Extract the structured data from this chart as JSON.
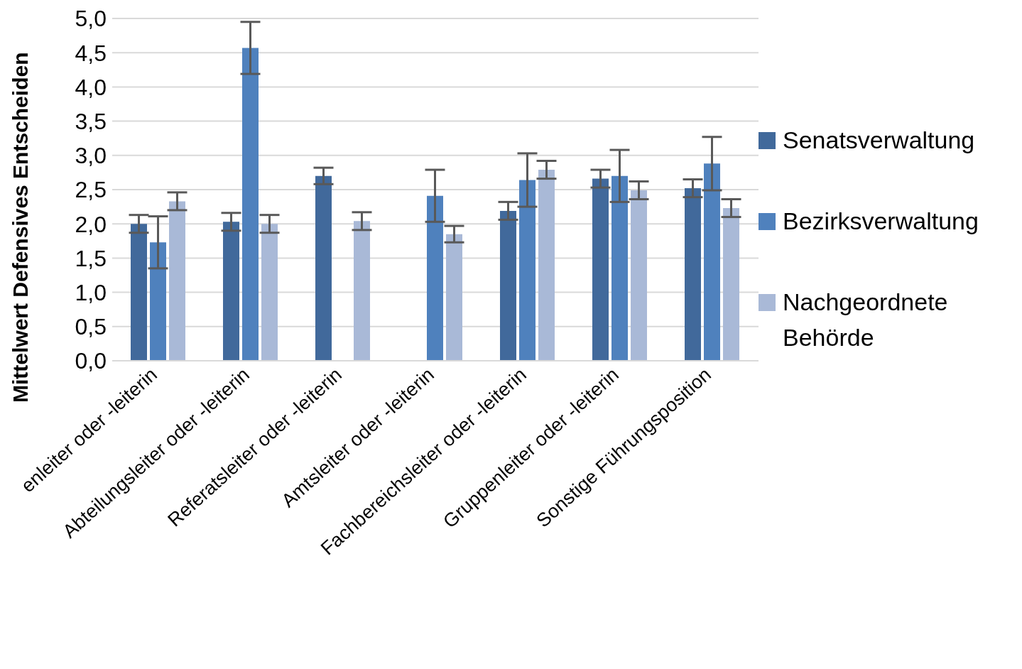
{
  "chart_data": {
    "type": "bar",
    "ylabel": "Mittelwert Defensives Entscheiden",
    "categories": [
      "enleiter oder -leiterin",
      "Abteilungsleiter oder -leiterin",
      "Referatsleiter oder -leiterin",
      "Amtsleiter oder -leiterin",
      "Fachbereichsleiter oder -leiterin",
      "Gruppenleiter oder -leiterin",
      "Sonstige Führungsposition"
    ],
    "series": [
      {
        "name": "Senatsverwaltung",
        "color": "#41699b",
        "values": [
          2.0,
          2.03,
          2.7,
          null,
          2.19,
          2.66,
          2.52
        ],
        "errors": [
          0.13,
          0.13,
          0.12,
          null,
          0.13,
          0.13,
          0.13
        ]
      },
      {
        "name": "Bezirksverwaltung",
        "color": "#4f81bd",
        "values": [
          1.73,
          4.57,
          null,
          2.41,
          2.64,
          2.7,
          2.88
        ],
        "errors": [
          0.38,
          0.38,
          null,
          0.38,
          0.39,
          0.38,
          0.39
        ]
      },
      {
        "name": "Nachgeordnete Behörde",
        "color": "#a9b9d7",
        "values": [
          2.33,
          2.0,
          2.04,
          1.85,
          2.79,
          2.49,
          2.23
        ],
        "errors": [
          0.13,
          0.13,
          0.13,
          0.12,
          0.13,
          0.13,
          0.13
        ]
      }
    ],
    "ylim": [
      0,
      5
    ],
    "yticks": [
      {
        "value": 0,
        "label": "0,0"
      },
      {
        "value": 0.5,
        "label": "0,5"
      },
      {
        "value": 1,
        "label": "1,0"
      },
      {
        "value": 1.5,
        "label": "1,5"
      },
      {
        "value": 2,
        "label": "2,0"
      },
      {
        "value": 2.5,
        "label": "2,5"
      },
      {
        "value": 3,
        "label": "3,0"
      },
      {
        "value": 3.5,
        "label": "3,5"
      },
      {
        "value": 4,
        "label": "4,0"
      },
      {
        "value": 4.5,
        "label": "4,5"
      },
      {
        "value": 5,
        "label": "5,0"
      }
    ],
    "grid": "y",
    "legend": "right"
  }
}
